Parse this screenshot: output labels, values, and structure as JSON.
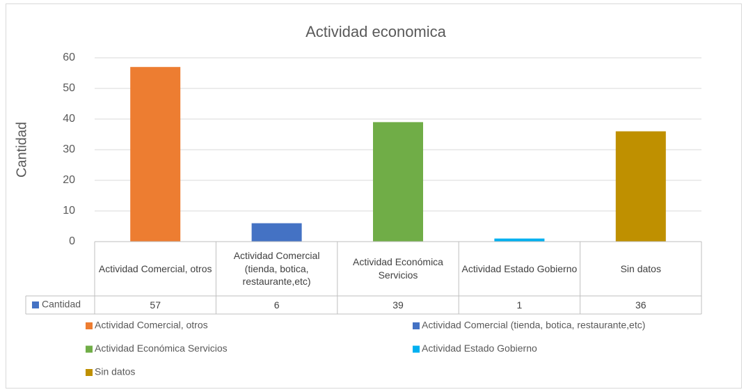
{
  "chart_data": {
    "type": "bar",
    "title": "Actividad economica",
    "y_label": "Cantidad",
    "categories": [
      "Actividad Comercial, otros",
      "Actividad Comercial (tienda, botica, restaurante,etc)",
      "Actividad Económica Servicios",
      "Actividad Estado Gobierno",
      "Sin datos"
    ],
    "series": [
      {
        "name": "Cantidad",
        "color": "#4472c4",
        "values": [
          57,
          6,
          39,
          1,
          36
        ]
      }
    ],
    "colors": [
      "#ed7d31",
      "#4472c4",
      "#70ad47",
      "#00b0f0",
      "#bf9000"
    ],
    "ylim": [
      0,
      60
    ],
    "yticks": [
      0,
      10,
      20,
      30,
      40,
      50,
      60
    ],
    "grid": true,
    "legend": "bottom"
  }
}
